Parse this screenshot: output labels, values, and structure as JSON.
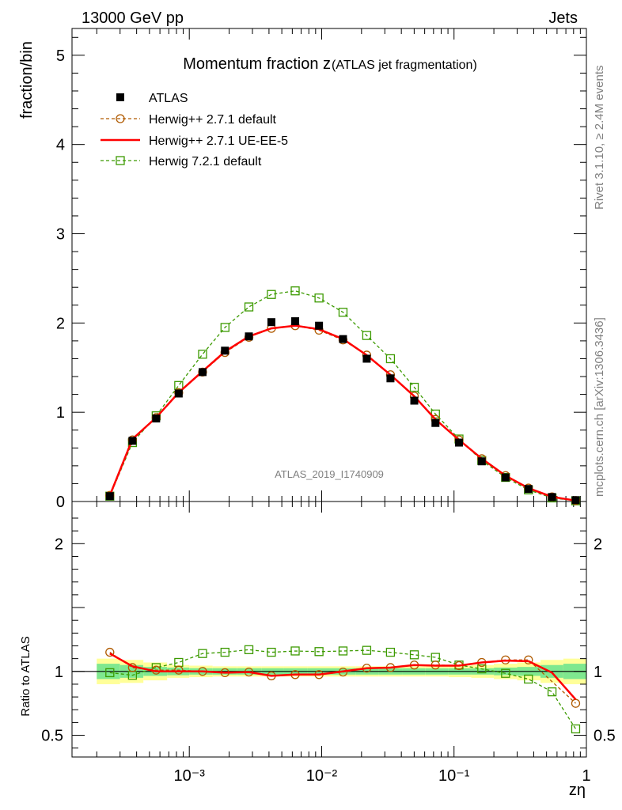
{
  "header": {
    "energy_label": "13000 GeV pp",
    "process_label": "Jets"
  },
  "side_text": {
    "rivet": "Rivet 3.1.10, ≥ 2.4M events",
    "mcplots": "mcplots.cern.ch [arXiv:1306.3436]"
  },
  "chart_data": [
    {
      "type": "line",
      "title": "Momentum fraction z",
      "subtitle": "(ATLAS jet fragmentation)",
      "ylabel": "fraction/bin",
      "xlabel": "zη",
      "watermark": "ATLAS_2019_I1740909",
      "x_scale": "log",
      "xlim": [
        0.00013,
        1.0
      ],
      "ylim": [
        0,
        5.3
      ],
      "y_ticks": [
        0,
        1,
        2,
        3,
        4,
        5
      ],
      "x_tick_labels": [
        "10⁻³",
        "10⁻²",
        "10⁻¹",
        "1"
      ],
      "legend_position": "top-left",
      "x": [
        0.000251,
        0.000372,
        0.000562,
        0.000832,
        0.00126,
        0.00186,
        0.00282,
        0.00417,
        0.00631,
        0.00955,
        0.0145,
        0.0219,
        0.0331,
        0.0501,
        0.0724,
        0.109,
        0.162,
        0.245,
        0.365,
        0.55,
        0.83
      ],
      "series": [
        {
          "name": "ATLAS",
          "color": "#000000",
          "marker": "filled-square",
          "values": [
            0.06,
            0.68,
            0.93,
            1.21,
            1.45,
            1.69,
            1.85,
            2.01,
            2.02,
            1.97,
            1.82,
            1.6,
            1.38,
            1.13,
            0.88,
            0.66,
            0.45,
            0.27,
            0.14,
            0.05,
            0.015
          ]
        },
        {
          "name": "Herwig++ 2.7.1 default",
          "color": "#b05a00",
          "marker": "open-circle",
          "dash": true,
          "values": [
            0.068,
            0.69,
            0.94,
            1.22,
            1.45,
            1.67,
            1.84,
            1.94,
            1.97,
            1.92,
            1.81,
            1.64,
            1.42,
            1.18,
            0.92,
            0.69,
            0.48,
            0.29,
            0.15,
            0.052,
            0.011
          ]
        },
        {
          "name": "Herwig++ 2.7.1 UE-EE-5",
          "color": "#ff0000",
          "marker": "none",
          "dash": false,
          "values": [
            0.067,
            0.7,
            0.94,
            1.22,
            1.46,
            1.68,
            1.85,
            1.94,
            1.97,
            1.93,
            1.82,
            1.64,
            1.42,
            1.18,
            0.92,
            0.69,
            0.48,
            0.29,
            0.15,
            0.052,
            0.011
          ]
        },
        {
          "name": "Herwig 7.2.1 default",
          "color": "#3c9a00",
          "marker": "open-square",
          "dash": true,
          "values": [
            0.06,
            0.66,
            0.96,
            1.3,
            1.65,
            1.95,
            2.18,
            2.32,
            2.36,
            2.28,
            2.12,
            1.86,
            1.6,
            1.28,
            0.98,
            0.7,
            0.46,
            0.27,
            0.13,
            0.04,
            0.008
          ]
        }
      ]
    },
    {
      "type": "line",
      "ylabel": "Ratio to ATLAS",
      "x_scale": "log",
      "xlim": [
        0.00013,
        1.0
      ],
      "ylim": [
        0.33,
        2.33
      ],
      "y_ticks": [
        0.5,
        1,
        2
      ],
      "x": [
        0.000251,
        0.000372,
        0.000562,
        0.000832,
        0.00126,
        0.00186,
        0.00282,
        0.00417,
        0.00631,
        0.00955,
        0.0145,
        0.0219,
        0.0331,
        0.0501,
        0.0724,
        0.109,
        0.162,
        0.245,
        0.365,
        0.55,
        0.83
      ],
      "bands": {
        "bin_edges": [
          0.0002,
          0.0003,
          0.00045,
          0.00068,
          0.001,
          0.0015,
          0.0023,
          0.0035,
          0.0052,
          0.0078,
          0.0118,
          0.018,
          0.027,
          0.041,
          0.061,
          0.091,
          0.135,
          0.2,
          0.3,
          0.45,
          0.67,
          1.0
        ],
        "stat_color": "#7fe88f",
        "total_color": "#ffff99",
        "stat_halfwidth": [
          0.06,
          0.05,
          0.035,
          0.03,
          0.025,
          0.025,
          0.025,
          0.025,
          0.025,
          0.025,
          0.025,
          0.025,
          0.025,
          0.025,
          0.025,
          0.025,
          0.025,
          0.03,
          0.035,
          0.05,
          0.06
        ],
        "total_halfwidth": [
          0.1,
          0.09,
          0.07,
          0.05,
          0.045,
          0.04,
          0.04,
          0.04,
          0.04,
          0.04,
          0.04,
          0.04,
          0.04,
          0.04,
          0.04,
          0.045,
          0.05,
          0.06,
          0.07,
          0.09,
          0.1
        ]
      },
      "series": [
        {
          "name": "Herwig++ 2.7.1 default",
          "color": "#b05a00",
          "marker": "open-circle",
          "dash": true,
          "values": [
            1.15,
            1.03,
            1.01,
            1.01,
            1.0,
            0.99,
            0.995,
            0.965,
            0.975,
            0.975,
            0.995,
            1.025,
            1.03,
            1.05,
            1.05,
            1.045,
            1.07,
            1.09,
            1.09,
            null,
            0.75
          ]
        },
        {
          "name": "Herwig++ 2.7.1 UE-EE-5",
          "color": "#ff0000",
          "marker": "none",
          "dash": false,
          "values": [
            1.14,
            1.04,
            1.0,
            1.0,
            1.0,
            0.99,
            0.995,
            0.965,
            0.975,
            0.975,
            1.0,
            1.025,
            1.03,
            1.05,
            1.045,
            1.045,
            1.07,
            1.085,
            1.08,
            0.99,
            0.78
          ]
        },
        {
          "name": "Herwig 7.2.1 default",
          "color": "#3c9a00",
          "marker": "open-square",
          "dash": true,
          "values": [
            0.99,
            0.97,
            1.03,
            1.07,
            1.14,
            1.15,
            1.17,
            1.15,
            1.16,
            1.155,
            1.16,
            1.165,
            1.15,
            1.13,
            1.11,
            1.05,
            1.02,
            0.985,
            0.94,
            0.84,
            0.55
          ]
        }
      ]
    }
  ]
}
